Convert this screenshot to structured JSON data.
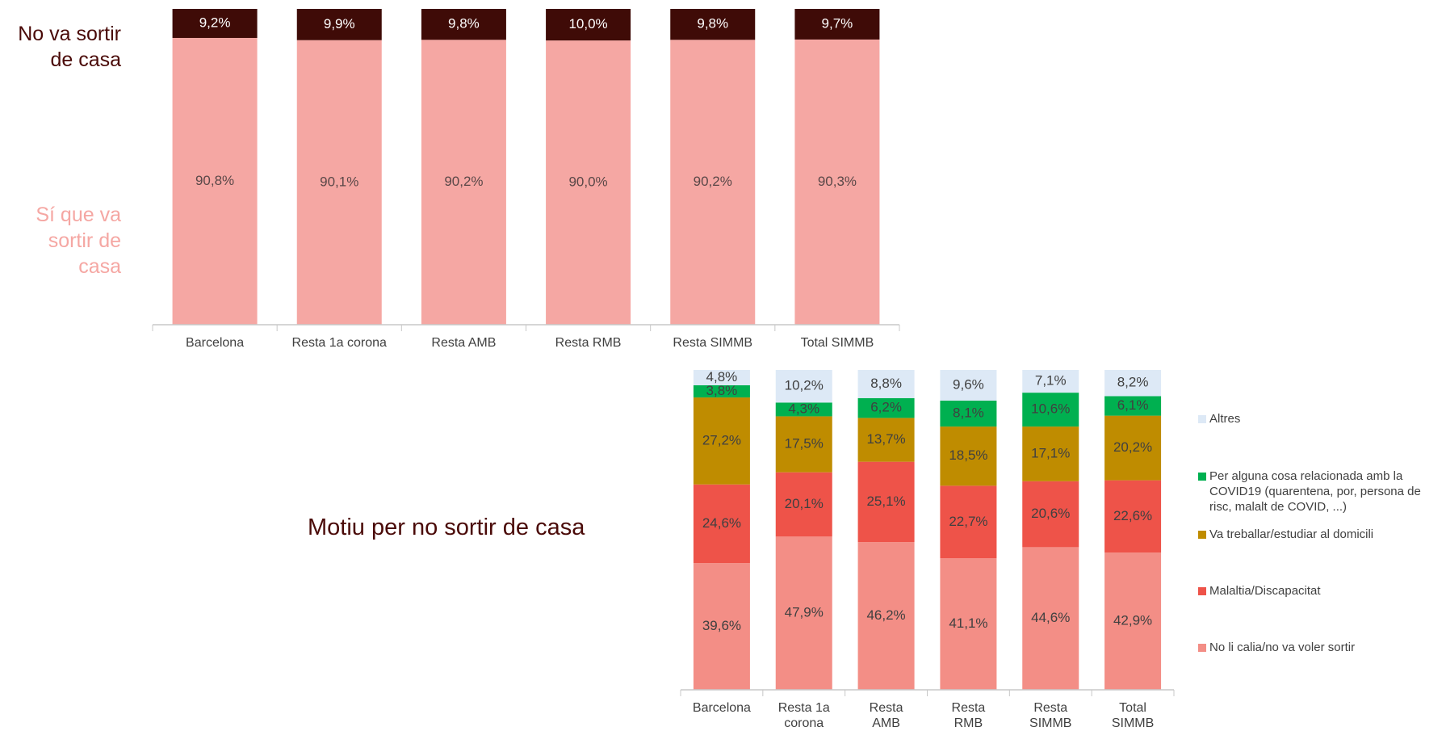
{
  "chart_data": [
    {
      "type": "bar",
      "stacked": true,
      "categories": [
        "Barcelona",
        "Resta 1a corona",
        "Resta AMB",
        "Resta RMB",
        "Resta SIMMB",
        "Total SIMMB"
      ],
      "ylim": [
        0,
        100
      ],
      "series": [
        {
          "name": "Sí que va sortir de casa",
          "color": "#f5a7a3",
          "values": [
            90.8,
            90.1,
            90.2,
            90.0,
            90.2,
            90.3
          ],
          "value_labels": [
            "90,8%",
            "90,1%",
            "90,2%",
            "90,0%",
            "90,2%",
            "90,3%"
          ]
        },
        {
          "name": "No va sortir de casa",
          "color": "#3f0b07",
          "values": [
            9.2,
            9.9,
            9.8,
            10.0,
            9.8,
            9.7
          ],
          "value_labels": [
            "9,2%",
            "9,9%",
            "9,8%",
            "10,0%",
            "9,8%",
            "9,7%"
          ]
        }
      ]
    },
    {
      "type": "bar",
      "stacked": true,
      "title": "Motiu per no sortir de casa",
      "categories": [
        "Barcelona",
        "Resta 1a corona",
        "Resta AMB",
        "Resta RMB",
        "Resta SIMMB",
        "Total SIMMB"
      ],
      "ylim": [
        0,
        100
      ],
      "series": [
        {
          "name": "No li calia/no va voler sortir",
          "color": "#f38e86",
          "values": [
            39.6,
            47.9,
            46.2,
            41.1,
            44.6,
            42.9
          ],
          "value_labels": [
            "39,6%",
            "47,9%",
            "46,2%",
            "41,1%",
            "44,6%",
            "42,9%"
          ]
        },
        {
          "name": "Malaltia/Discapacitat",
          "color": "#ee5349",
          "values": [
            24.6,
            20.1,
            25.1,
            22.7,
            20.6,
            22.6
          ],
          "value_labels": [
            "24,6%",
            "20,1%",
            "25,1%",
            "22,7%",
            "20,6%",
            "22,6%"
          ]
        },
        {
          "name": "Va treballar/estudiar al domicili",
          "color": "#bf8c00",
          "values": [
            27.2,
            17.5,
            13.7,
            18.5,
            17.1,
            20.2
          ],
          "value_labels": [
            "27,2%",
            "17,5%",
            "13,7%",
            "18,5%",
            "17,1%",
            "20,2%"
          ]
        },
        {
          "name": "Per alguna cosa relacionada amb la COVID19 (quarentena, por, persona de risc, malalt de COVID, ...)",
          "color": "#00b050",
          "values": [
            3.8,
            4.3,
            6.2,
            8.1,
            10.6,
            6.1
          ],
          "value_labels": [
            "3,8%",
            "4,3%",
            "6,2%",
            "8,1%",
            "10,6%",
            "6,1%"
          ]
        },
        {
          "name": "Altres",
          "color": "#dde9f6",
          "values": [
            4.8,
            10.2,
            8.8,
            9.6,
            7.1,
            8.2
          ],
          "value_labels": [
            "4,8%",
            "10,2%",
            "8,8%",
            "9,6%",
            "7,1%",
            "8,2%"
          ]
        }
      ]
    }
  ]
}
